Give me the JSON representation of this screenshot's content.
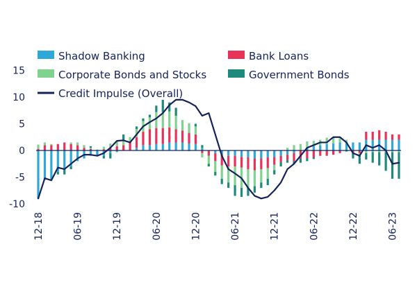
{
  "chart_data": {
    "type": "bar",
    "stacked": true,
    "title": "",
    "xlabel": "",
    "ylabel": "",
    "ylim": [
      -10,
      15
    ],
    "yticks": [
      -10,
      -5,
      0,
      5,
      10,
      15
    ],
    "grid": false,
    "legend_position": "top",
    "x_tick_labels": [
      "12-18",
      "06-19",
      "12-19",
      "06-20",
      "12-20",
      "06-21",
      "12-21",
      "06-22",
      "12-22",
      "06-23"
    ],
    "x": [
      "12-18",
      "01-19",
      "02-19",
      "03-19",
      "04-19",
      "05-19",
      "06-19",
      "07-19",
      "08-19",
      "09-19",
      "10-19",
      "11-19",
      "12-19",
      "01-20",
      "02-20",
      "03-20",
      "04-20",
      "05-20",
      "06-20",
      "07-20",
      "08-20",
      "09-20",
      "10-20",
      "11-20",
      "12-20",
      "01-21",
      "02-21",
      "03-21",
      "04-21",
      "05-21",
      "06-21",
      "07-21",
      "08-21",
      "09-21",
      "10-21",
      "11-21",
      "12-21",
      "01-22",
      "02-22",
      "03-22",
      "04-22",
      "05-22",
      "06-22",
      "07-22",
      "08-22",
      "09-22",
      "10-22",
      "11-22",
      "12-22",
      "01-23",
      "02-23",
      "03-23",
      "04-23",
      "05-23",
      "06-23",
      "07-23"
    ],
    "series": [
      {
        "name": "Shadow Banking",
        "color": "#2ea8d9",
        "values": [
          -9.0,
          -5.5,
          -5.5,
          -4.0,
          -3.5,
          -3.0,
          -2.0,
          -1.5,
          -1.0,
          -1.0,
          -1.0,
          -0.5,
          -0.3,
          0.0,
          0.0,
          0.5,
          1.0,
          1.0,
          1.2,
          1.2,
          1.5,
          1.5,
          1.5,
          1.3,
          1.2,
          0.5,
          0.0,
          -0.5,
          -0.8,
          -1.0,
          -1.0,
          -1.2,
          -1.3,
          -1.5,
          -1.5,
          -1.3,
          -1.2,
          -1.0,
          -0.8,
          -0.5,
          0.0,
          0.5,
          0.8,
          1.0,
          1.2,
          1.3,
          1.5,
          1.5,
          1.5,
          1.5,
          2.0,
          2.0,
          2.0,
          2.0,
          2.0,
          2.0
        ]
      },
      {
        "name": "Bank Loans",
        "color": "#e8325a",
        "values": [
          0.3,
          1.0,
          1.0,
          1.2,
          1.5,
          1.2,
          1.0,
          0.5,
          0.3,
          0.0,
          0.2,
          0.5,
          0.8,
          1.0,
          1.5,
          2.0,
          2.5,
          3.0,
          3.0,
          3.0,
          2.8,
          2.5,
          2.2,
          2.0,
          1.8,
          -0.5,
          -1.0,
          -1.5,
          -2.0,
          -2.0,
          -2.0,
          -2.0,
          -2.2,
          -2.2,
          -2.0,
          -2.0,
          -1.5,
          -1.2,
          -1.0,
          -1.5,
          -1.5,
          -1.5,
          -1.3,
          -1.0,
          -1.0,
          -0.8,
          -0.5,
          0.0,
          -0.5,
          -0.5,
          1.5,
          1.5,
          1.8,
          1.5,
          1.0,
          1.0
        ]
      },
      {
        "name": "Corporate Bonds and Stocks",
        "color": "#7fd38f",
        "values": [
          0.8,
          0.5,
          0.2,
          0.0,
          0.0,
          0.3,
          0.5,
          0.5,
          0.2,
          0.2,
          0.5,
          0.8,
          1.0,
          1.0,
          1.0,
          1.5,
          2.0,
          2.2,
          3.0,
          3.0,
          3.0,
          2.5,
          2.0,
          1.8,
          1.5,
          -0.8,
          -1.5,
          -2.0,
          -2.5,
          -3.0,
          -3.5,
          -3.8,
          -3.5,
          -3.0,
          -2.5,
          -2.0,
          -1.0,
          0.0,
          0.5,
          1.0,
          1.2,
          1.2,
          1.0,
          1.0,
          1.2,
          1.0,
          0.8,
          0.5,
          0.0,
          -0.5,
          -0.5,
          -0.3,
          -0.3,
          -0.3,
          -0.3,
          -0.3
        ]
      },
      {
        "name": "Government Bonds",
        "color": "#1e8a7c",
        "values": [
          0.0,
          0.0,
          0.0,
          -0.5,
          -1.0,
          -0.5,
          0.0,
          0.0,
          0.3,
          0.0,
          -0.5,
          -1.0,
          0.0,
          1.0,
          0.0,
          0.5,
          0.5,
          0.5,
          1.2,
          2.3,
          1.7,
          1.5,
          0.0,
          -0.1,
          0.5,
          0.5,
          -0.5,
          -0.7,
          -1.0,
          -1.0,
          -2.0,
          -1.7,
          -1.5,
          -1.2,
          -1.0,
          -1.2,
          -0.8,
          -0.8,
          -0.5,
          -0.5,
          -0.8,
          -0.5,
          -0.3,
          0.0,
          0.0,
          0.2,
          0.0,
          -0.2,
          -1.0,
          -1.5,
          -1.2,
          -2.0,
          -2.5,
          -3.5,
          -5.0,
          -5.0
        ]
      }
    ],
    "line": {
      "name": "Credit Impulse (Overall)",
      "color": "#14215a",
      "values": [
        -9.0,
        -5.2,
        -5.6,
        -3.2,
        -3.5,
        -2.5,
        -1.5,
        -0.8,
        -0.8,
        -1.0,
        -0.5,
        0.5,
        1.8,
        1.9,
        1.5,
        3.0,
        4.5,
        5.3,
        6.0,
        7.0,
        8.5,
        9.5,
        9.5,
        9.0,
        8.3,
        6.5,
        7.0,
        3.0,
        -1.0,
        -3.5,
        -4.3,
        -5.2,
        -7.0,
        -8.5,
        -9.0,
        -8.7,
        -7.5,
        -6.0,
        -3.5,
        -2.5,
        -1.0,
        0.5,
        1.0,
        1.5,
        1.5,
        2.5,
        2.5,
        1.5,
        -0.5,
        -1.0,
        1.0,
        0.5,
        1.0,
        0.0,
        -2.5,
        -2.3
      ]
    }
  }
}
